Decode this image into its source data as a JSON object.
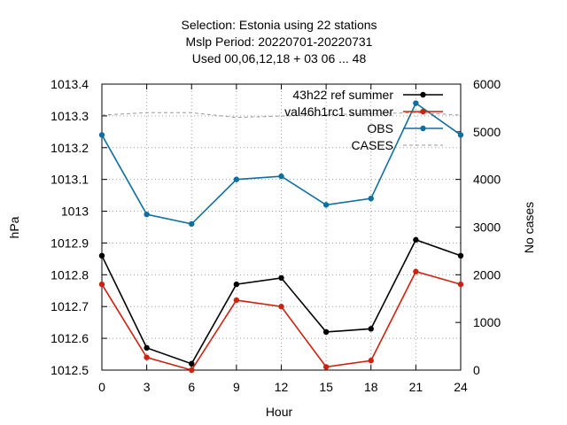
{
  "chart_data": {
    "type": "line",
    "title_lines": [
      "Selection: Estonia using    22 stations",
      "Mslp   Period: 20220701-20220731",
      "Used  00,06,12,18  + 03 06 ... 48"
    ],
    "xlabel": "Hour",
    "ylabel": "hPa",
    "y2label": "No cases",
    "x": [
      0,
      3,
      6,
      9,
      12,
      15,
      18,
      21,
      24
    ],
    "xlim": [
      0,
      24
    ],
    "ylim": [
      1012.5,
      1013.4
    ],
    "y2lim": [
      0,
      6000
    ],
    "xticks": [
      0,
      3,
      6,
      9,
      12,
      15,
      18,
      21,
      24
    ],
    "yticks": [
      1012.5,
      1012.6,
      1012.7,
      1012.8,
      1012.9,
      1013,
      1013.1,
      1013.2,
      1013.3,
      1013.4
    ],
    "ytick_labels": [
      "1012.5",
      "1012.6",
      "1012.7",
      "1012.8",
      "1012.9",
      "1013",
      "1013.1",
      "1013.2",
      "1013.3",
      "1013.4"
    ],
    "y2ticks": [
      0,
      1000,
      2000,
      3000,
      4000,
      5000,
      6000
    ],
    "grid": true,
    "legend_position": "top-right",
    "series": [
      {
        "name": "43h22_ref_summer",
        "legend_label": "43h22 ref summer",
        "color": "#000000",
        "axis": "left",
        "style": "solid",
        "marker": "dot",
        "values": [
          1012.86,
          1012.57,
          1012.52,
          1012.77,
          1012.79,
          1012.62,
          1012.63,
          1012.91,
          1012.86
        ]
      },
      {
        "name": "val46h1rc1_summer",
        "legend_label": "val46h1rc1 summer",
        "color": "#cc2211",
        "axis": "left",
        "style": "solid",
        "marker": "dot",
        "values": [
          1012.77,
          1012.54,
          1012.5,
          1012.72,
          1012.7,
          1012.51,
          1012.53,
          1012.81,
          1012.77
        ]
      },
      {
        "name": "OBS",
        "legend_label": "OBS",
        "color": "#0e6fa0",
        "axis": "left",
        "style": "solid",
        "marker": "dot",
        "values": [
          1013.24,
          1012.99,
          1012.96,
          1013.1,
          1013.11,
          1013.02,
          1013.04,
          1013.34,
          1013.24
        ]
      },
      {
        "name": "CASES",
        "legend_label": "CASES",
        "color": "#999999",
        "axis": "right",
        "style": "dashed",
        "marker": "none",
        "values": [
          5350,
          5400,
          5400,
          5300,
          5330,
          5360,
          5380,
          5400,
          5350
        ]
      }
    ]
  }
}
